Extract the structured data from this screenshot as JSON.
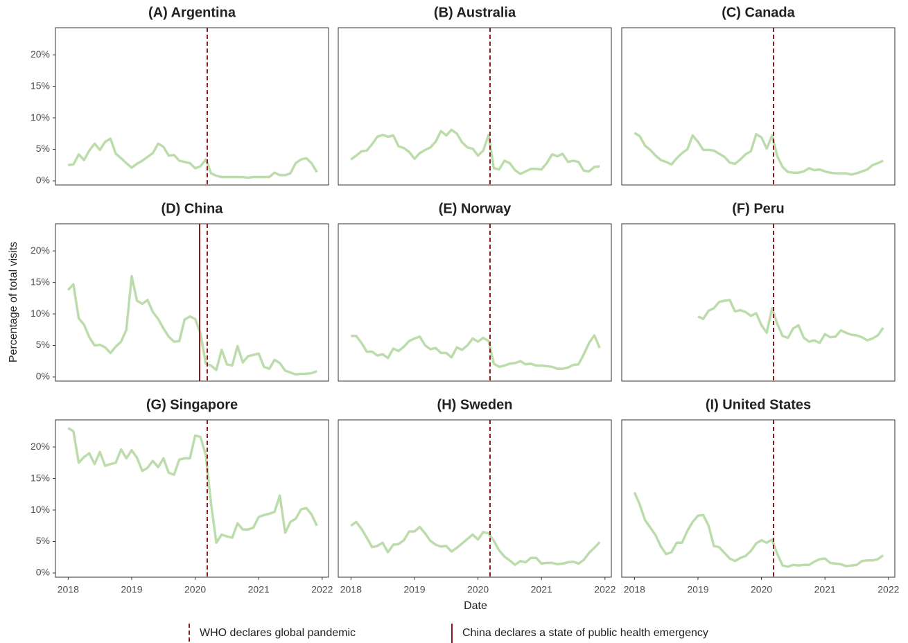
{
  "chart_data": {
    "type": "line",
    "xlabel": "Date",
    "ylabel": "Percentage of total visits",
    "color": "#bcdcab",
    "event_color": "#8b1a1a",
    "x": [
      2018,
      2018.083,
      2018.167,
      2018.25,
      2018.333,
      2018.417,
      2018.5,
      2018.583,
      2018.667,
      2018.75,
      2018.833,
      2018.917,
      2019,
      2019.083,
      2019.167,
      2019.25,
      2019.333,
      2019.417,
      2019.5,
      2019.583,
      2019.667,
      2019.75,
      2019.833,
      2019.917,
      2020,
      2020.083,
      2020.167,
      2020.25,
      2020.333,
      2020.417,
      2020.5,
      2020.583,
      2020.667,
      2020.75,
      2020.833,
      2020.917,
      2021,
      2021.083,
      2021.167,
      2021.25,
      2021.333,
      2021.417,
      2021.5,
      2021.583,
      2021.667,
      2021.75,
      2021.833,
      2021.917
    ],
    "xlim": [
      2017.8,
      2022.1
    ],
    "xticks": [
      2018,
      2019,
      2020,
      2021,
      2022
    ],
    "ylim": [
      -0.66,
      24.3
    ],
    "yticks": [
      {
        "value": 0,
        "label": "0%"
      },
      {
        "value": 5,
        "label": "5%"
      },
      {
        "value": 10,
        "label": "10%"
      },
      {
        "value": 15,
        "label": "15%"
      },
      {
        "value": 20,
        "label": "20%"
      }
    ],
    "events": [
      {
        "label": "WHO declares global pandemic",
        "x": 2020.19,
        "dashed": true
      },
      {
        "label": "China declares a state of public health emergency",
        "x": 2020.07,
        "dashed": false,
        "facet": 3
      }
    ],
    "facets": [
      {
        "title": "(A) Argentina",
        "values": [
          2.5,
          2.6,
          4.2,
          3.3,
          4.8,
          5.9,
          4.9,
          6.2,
          6.7,
          4.3,
          3.6,
          2.8,
          2.1,
          2.7,
          3.2,
          3.8,
          4.4,
          5.9,
          5.4,
          4.0,
          4.1,
          3.2,
          3.0,
          2.8,
          2.0,
          2.3,
          3.4,
          1.2,
          0.8,
          0.6,
          0.6,
          0.6,
          0.6,
          0.6,
          0.5,
          0.6,
          0.6,
          0.6,
          0.6,
          1.3,
          0.9,
          0.9,
          1.2,
          2.8,
          3.4,
          3.6,
          2.8,
          1.4
        ]
      },
      {
        "title": "(B) Australia",
        "values": [
          3.4,
          4.0,
          4.7,
          4.8,
          5.8,
          7.0,
          7.3,
          7.0,
          7.2,
          5.5,
          5.2,
          4.6,
          3.5,
          4.4,
          4.9,
          5.3,
          6.2,
          7.9,
          7.2,
          8.1,
          7.5,
          6.1,
          5.3,
          5.1,
          4.0,
          4.8,
          7.3,
          2.0,
          1.8,
          3.2,
          2.8,
          1.7,
          1.1,
          1.5,
          1.9,
          1.9,
          1.8,
          2.8,
          4.2,
          3.9,
          4.3,
          3.0,
          3.2,
          3.0,
          1.6,
          1.5,
          2.2,
          2.3
        ]
      },
      {
        "title": "(C) Canada",
        "values": [
          7.6,
          7.1,
          5.6,
          4.9,
          4.0,
          3.3,
          3.0,
          2.6,
          3.6,
          4.4,
          5.0,
          7.2,
          6.2,
          4.9,
          4.9,
          4.8,
          4.3,
          3.8,
          2.9,
          2.7,
          3.4,
          4.2,
          4.7,
          7.4,
          6.9,
          5.1,
          7.2,
          3.9,
          2.2,
          1.4,
          1.3,
          1.3,
          1.5,
          2.0,
          1.7,
          1.8,
          1.5,
          1.3,
          1.2,
          1.2,
          1.2,
          1.0,
          1.2,
          1.5,
          1.8,
          2.5,
          2.8,
          3.2
        ]
      },
      {
        "title": "(D) China",
        "values": [
          13.8,
          14.7,
          9.3,
          8.3,
          6.3,
          5.0,
          5.1,
          4.7,
          3.8,
          4.8,
          5.6,
          7.5,
          16.0,
          12.1,
          11.6,
          12.2,
          10.3,
          9.2,
          7.7,
          6.4,
          5.6,
          5.7,
          9.1,
          9.6,
          9.2,
          6.9,
          2.1,
          1.8,
          1.1,
          4.3,
          2.0,
          1.8,
          4.9,
          2.3,
          3.3,
          3.5,
          3.7,
          1.6,
          1.3,
          2.7,
          2.2,
          1.0,
          0.7,
          0.4,
          0.5,
          0.5,
          0.6,
          0.9
        ]
      },
      {
        "title": "(E) Norway",
        "values": [
          6.5,
          6.5,
          5.4,
          4.0,
          4.0,
          3.4,
          3.6,
          3.0,
          4.5,
          4.1,
          4.8,
          5.7,
          6.1,
          6.4,
          5.0,
          4.4,
          4.6,
          3.8,
          3.8,
          3.1,
          4.7,
          4.3,
          5.0,
          6.1,
          5.6,
          6.2,
          5.7,
          2.1,
          1.6,
          1.8,
          2.1,
          2.2,
          2.5,
          2.0,
          2.1,
          1.8,
          1.8,
          1.7,
          1.6,
          1.3,
          1.3,
          1.5,
          1.9,
          2.0,
          3.6,
          5.4,
          6.6,
          4.6
        ]
      },
      {
        "title": "(F) Peru",
        "values": [
          null,
          null,
          null,
          null,
          null,
          null,
          null,
          null,
          null,
          null,
          null,
          null,
          9.6,
          9.2,
          10.5,
          10.9,
          11.9,
          12.1,
          12.2,
          10.4,
          10.6,
          10.3,
          9.7,
          10.1,
          8.2,
          7.0,
          10.9,
          8.4,
          6.5,
          6.2,
          7.7,
          8.2,
          6.2,
          5.6,
          5.8,
          5.4,
          6.8,
          6.3,
          6.4,
          7.4,
          7.0,
          6.7,
          6.6,
          6.3,
          5.8,
          6.1,
          6.6,
          7.8
        ]
      },
      {
        "title": "(G) Singapore",
        "values": [
          23.0,
          22.5,
          17.5,
          18.4,
          19.0,
          17.3,
          19.2,
          17.0,
          17.3,
          17.5,
          19.6,
          18.2,
          19.5,
          18.3,
          16.2,
          16.7,
          17.8,
          16.8,
          18.2,
          15.9,
          15.6,
          18.0,
          18.2,
          18.2,
          21.8,
          21.6,
          18.7,
          11.0,
          4.8,
          6.1,
          5.8,
          5.6,
          7.9,
          6.9,
          6.9,
          7.2,
          8.9,
          9.2,
          9.4,
          9.7,
          12.3,
          6.4,
          8.1,
          8.6,
          10.1,
          10.3,
          9.3,
          7.5
        ]
      },
      {
        "title": "(H) Sweden",
        "values": [
          7.5,
          8.1,
          7.0,
          5.6,
          4.1,
          4.3,
          4.8,
          3.3,
          4.5,
          4.6,
          5.2,
          6.6,
          6.6,
          7.3,
          6.3,
          5.1,
          4.5,
          4.2,
          4.3,
          3.4,
          4.0,
          4.7,
          5.4,
          6.1,
          5.3,
          6.5,
          6.3,
          5.1,
          3.6,
          2.6,
          2.0,
          1.3,
          1.9,
          1.7,
          2.4,
          2.4,
          1.5,
          1.6,
          1.6,
          1.4,
          1.5,
          1.7,
          1.8,
          1.5,
          2.1,
          3.2,
          4.0,
          4.9
        ]
      },
      {
        "title": "(I) United States",
        "values": [
          12.8,
          10.9,
          8.4,
          7.2,
          6.0,
          4.2,
          3.0,
          3.3,
          4.8,
          4.8,
          6.7,
          8.1,
          9.1,
          9.2,
          7.5,
          4.3,
          4.1,
          3.2,
          2.3,
          1.9,
          2.4,
          2.7,
          3.5,
          4.7,
          5.2,
          4.8,
          5.3,
          3.0,
          1.2,
          1.0,
          1.3,
          1.2,
          1.3,
          1.3,
          1.8,
          2.2,
          2.3,
          1.6,
          1.5,
          1.4,
          1.1,
          1.2,
          1.3,
          1.9,
          2.0,
          2.0,
          2.2,
          2.8
        ]
      }
    ]
  }
}
